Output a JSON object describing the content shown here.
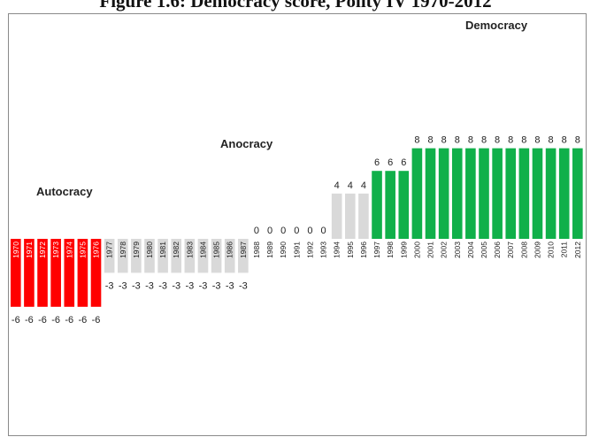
{
  "title": "Figure 1.6: Democracy score, Polity IV 1970-2012",
  "regime_labels": {
    "autocracy": "Autocracy",
    "anocracy": "Anocracy",
    "democracy": "Democracy"
  },
  "colors": {
    "autocracy": "#ff0000",
    "anocracy": "#d9d9d9",
    "democracy": "#10b04a"
  },
  "chart_data": {
    "type": "bar",
    "title": "Figure 1.6: Democracy score, Polity IV 1970-2012",
    "xlabel": "",
    "ylabel": "",
    "ylim": [
      -10,
      10
    ],
    "grid": false,
    "legend": "none",
    "categories": [
      "1970",
      "1971",
      "1972",
      "1973",
      "1974",
      "1975",
      "1976",
      "1977",
      "1978",
      "1979",
      "1980",
      "1981",
      "1982",
      "1983",
      "1984",
      "1985",
      "1986",
      "1987",
      "1988",
      "1989",
      "1990",
      "1991",
      "1992",
      "1993",
      "1994",
      "1995",
      "1996",
      "1997",
      "1998",
      "1999",
      "2000",
      "2001",
      "2002",
      "2003",
      "2004",
      "2005",
      "2006",
      "2007",
      "2008",
      "2009",
      "2010",
      "2011",
      "2012"
    ],
    "values": [
      -6,
      -6,
      -6,
      -6,
      -6,
      -6,
      -6,
      -3,
      -3,
      -3,
      -3,
      -3,
      -3,
      -3,
      -3,
      -3,
      -3,
      -3,
      0,
      0,
      0,
      0,
      0,
      0,
      4,
      4,
      4,
      6,
      6,
      6,
      8,
      8,
      8,
      8,
      8,
      8,
      8,
      8,
      8,
      8,
      8,
      8,
      8
    ],
    "regime": [
      "autocracy",
      "autocracy",
      "autocracy",
      "autocracy",
      "autocracy",
      "autocracy",
      "autocracy",
      "anocracy",
      "anocracy",
      "anocracy",
      "anocracy",
      "anocracy",
      "anocracy",
      "anocracy",
      "anocracy",
      "anocracy",
      "anocracy",
      "anocracy",
      "anocracy",
      "anocracy",
      "anocracy",
      "anocracy",
      "anocracy",
      "anocracy",
      "anocracy",
      "anocracy",
      "anocracy",
      "democracy",
      "democracy",
      "democracy",
      "democracy",
      "democracy",
      "democracy",
      "democracy",
      "democracy",
      "democracy",
      "democracy",
      "democracy",
      "democracy",
      "democracy",
      "democracy",
      "democracy",
      "democracy"
    ]
  }
}
